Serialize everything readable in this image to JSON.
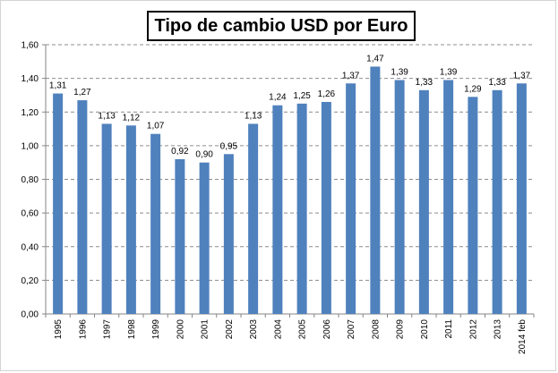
{
  "chart_data": {
    "type": "bar",
    "title": "Tipo de cambio USD por Euro",
    "xlabel": "",
    "ylabel": "",
    "categories": [
      "1995",
      "1996",
      "1997",
      "1998",
      "1999",
      "2000",
      "2001",
      "2002",
      "2003",
      "2004",
      "2005",
      "2006",
      "2007",
      "2008",
      "2009",
      "2010",
      "2011",
      "2012",
      "2013",
      "2014 feb"
    ],
    "values": [
      1.31,
      1.27,
      1.13,
      1.12,
      1.07,
      0.92,
      0.9,
      0.95,
      1.13,
      1.24,
      1.25,
      1.26,
      1.37,
      1.47,
      1.39,
      1.33,
      1.39,
      1.29,
      1.33,
      1.37
    ],
    "data_labels": [
      "1,31",
      "1,27",
      "1,13",
      "1,12",
      "1,07",
      "0,92",
      "0,90",
      "0,95",
      "1,13",
      "1,24",
      "1,25",
      "1,26",
      "1,37",
      "1,47",
      "1,39",
      "1,33",
      "1,39",
      "1,29",
      "1,33",
      "1,37"
    ],
    "y_ticks": [
      0,
      0.2,
      0.4,
      0.6,
      0.8,
      1.0,
      1.2,
      1.4,
      1.6
    ],
    "y_tick_labels": [
      "0,00",
      "0,20",
      "0,40",
      "0,60",
      "0,80",
      "1,00",
      "1,20",
      "1,40",
      "1,60"
    ],
    "ylim": [
      0,
      1.6
    ],
    "grid": true,
    "legend": "none",
    "bar_color": "#4f81bd"
  }
}
